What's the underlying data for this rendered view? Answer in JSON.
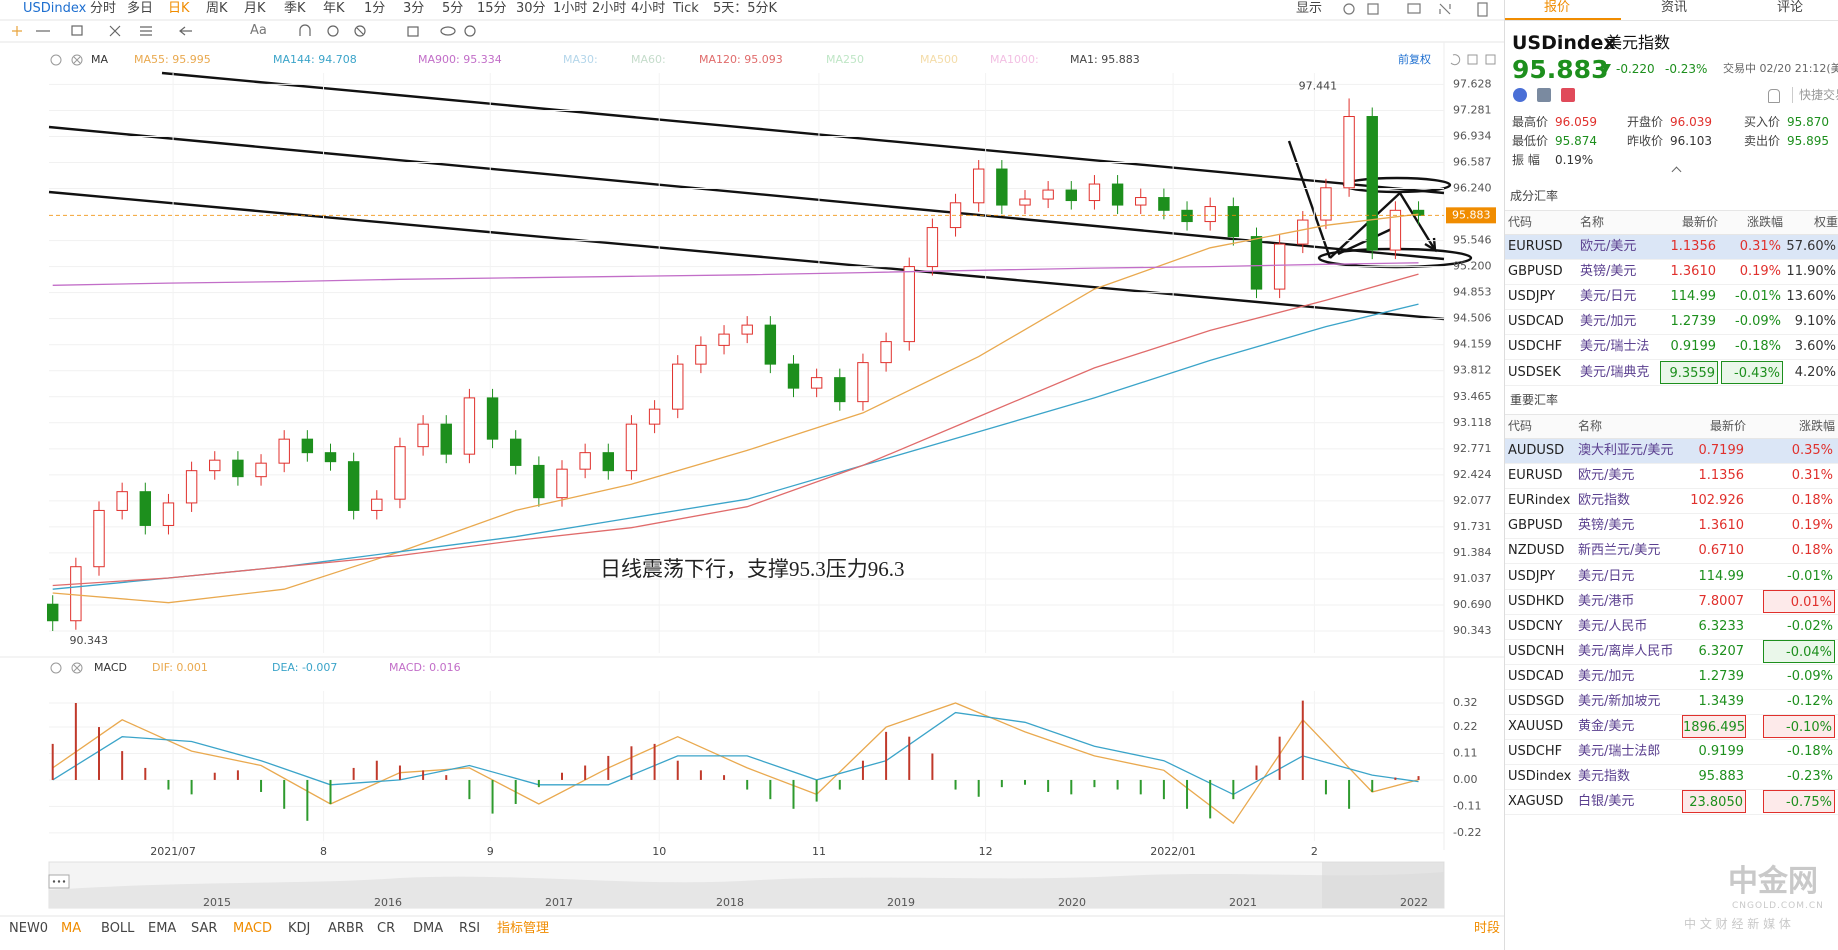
{
  "toolbar": {
    "symbol": "USDindex",
    "periods": [
      "分时",
      "多日",
      "日K",
      "周K",
      "月K",
      "季K",
      "年K",
      "1分",
      "3分",
      "5分",
      "15分",
      "30分",
      "1小时",
      "2小时",
      "4小时",
      "Tick",
      "5天：5分K"
    ],
    "display": "显示",
    "font_tool": "Aa"
  },
  "chart_data": [
    {
      "type": "candlestick",
      "indicator": "MA",
      "adjust": "前复权",
      "annotation": "日线震荡下行，支撑95.3压力96.3",
      "up_color": "#e0302c",
      "down_color": "#1d8f1d",
      "last_color": "#f08c00",
      "open": [
        90.7,
        90.48,
        91.2,
        91.95,
        92.2,
        91.75,
        92.05,
        92.48,
        92.62,
        92.4,
        92.58,
        92.9,
        92.72,
        92.6,
        91.95,
        92.1,
        92.8,
        93.1,
        92.7,
        93.45,
        92.9,
        92.55,
        92.12,
        92.5,
        92.72,
        92.48,
        93.1,
        93.3,
        93.9,
        94.15,
        94.3,
        94.42,
        93.9,
        93.58,
        93.72,
        93.4,
        93.92,
        94.2,
        95.2,
        95.72,
        96.05,
        96.5,
        96.02,
        96.1,
        96.22,
        96.08,
        96.3,
        96.02,
        96.12,
        95.95,
        95.8,
        96.0,
        95.6,
        94.9,
        95.5,
        95.82,
        96.25,
        97.2,
        95.42,
        95.95
      ],
      "high": [
        90.82,
        91.32,
        92.07,
        92.32,
        92.32,
        92.17,
        92.6,
        92.74,
        92.74,
        92.7,
        93.02,
        93.02,
        92.84,
        92.72,
        92.22,
        92.92,
        93.22,
        93.22,
        93.57,
        93.57,
        93.02,
        92.67,
        92.62,
        92.84,
        92.84,
        93.22,
        93.42,
        94.02,
        94.27,
        94.42,
        94.54,
        94.54,
        94.02,
        93.84,
        93.84,
        94.04,
        94.32,
        95.32,
        95.84,
        96.17,
        96.62,
        96.62,
        96.22,
        96.34,
        96.34,
        96.42,
        96.42,
        96.24,
        96.24,
        96.07,
        96.12,
        96.12,
        95.72,
        95.62,
        95.94,
        96.37,
        97.441,
        97.32,
        96.07,
        96.07
      ],
      "low": [
        90.343,
        90.36,
        91.08,
        91.83,
        91.63,
        91.63,
        91.93,
        92.36,
        92.28,
        92.28,
        92.46,
        92.6,
        92.48,
        91.83,
        91.83,
        91.98,
        92.68,
        92.58,
        92.58,
        92.78,
        92.43,
        92.0,
        92.0,
        92.38,
        92.36,
        92.36,
        92.98,
        93.18,
        93.78,
        94.03,
        94.18,
        93.78,
        93.46,
        93.46,
        93.28,
        93.28,
        93.8,
        94.08,
        95.08,
        95.6,
        95.93,
        95.9,
        95.9,
        95.98,
        95.96,
        95.96,
        95.9,
        95.9,
        95.83,
        95.68,
        95.68,
        95.48,
        94.78,
        94.78,
        95.38,
        95.7,
        96.13,
        95.3,
        95.3,
        95.76
      ],
      "close": [
        90.48,
        91.2,
        91.95,
        92.2,
        91.75,
        92.05,
        92.48,
        92.62,
        92.4,
        92.58,
        92.9,
        92.72,
        92.6,
        91.95,
        92.1,
        92.8,
        93.1,
        92.7,
        93.45,
        92.9,
        92.55,
        92.12,
        92.5,
        92.72,
        92.48,
        93.1,
        93.3,
        93.9,
        94.15,
        94.3,
        94.42,
        93.9,
        93.58,
        93.72,
        93.4,
        93.92,
        94.2,
        95.2,
        95.72,
        96.05,
        96.5,
        96.02,
        96.1,
        96.22,
        96.08,
        96.3,
        96.02,
        96.12,
        95.95,
        95.8,
        96.0,
        95.6,
        94.9,
        95.5,
        95.82,
        96.25,
        97.2,
        95.42,
        95.95,
        95.883
      ],
      "series": [
        {
          "name": "MA55: 95.995",
          "color": "#e9a94f",
          "x": [
            0,
            5,
            10,
            15,
            20,
            25,
            30,
            35,
            40,
            45,
            50,
            55,
            59
          ],
          "values": [
            90.85,
            90.72,
            90.9,
            91.4,
            91.95,
            92.3,
            92.75,
            93.25,
            94.0,
            94.9,
            95.45,
            95.75,
            95.9
          ]
        },
        {
          "name": "MA144: 94.708",
          "color": "#3ba4c9",
          "x": [
            0,
            5,
            10,
            15,
            20,
            25,
            30,
            35,
            40,
            45,
            50,
            55,
            59
          ],
          "values": [
            90.9,
            91.05,
            91.2,
            91.4,
            91.6,
            91.85,
            92.1,
            92.55,
            93.0,
            93.45,
            93.95,
            94.4,
            94.7
          ]
        },
        {
          "name": "MA900: 95.334",
          "color": "#c26ec8",
          "x": [
            0,
            5,
            10,
            15,
            20,
            25,
            30,
            35,
            40,
            45,
            50,
            55,
            59
          ],
          "values": [
            94.95,
            94.98,
            95.0,
            95.03,
            95.05,
            95.07,
            95.09,
            95.12,
            95.15,
            95.18,
            95.2,
            95.23,
            95.25
          ]
        },
        {
          "name": "MA30:",
          "color": "#b4d6ea"
        },
        {
          "name": "MA60:",
          "color": "#c5dccb"
        },
        {
          "name": "MA120: 95.093",
          "color": "#e06b6b",
          "x": [
            0,
            5,
            10,
            15,
            20,
            25,
            30,
            35,
            40,
            45,
            50,
            55,
            59
          ],
          "values": [
            90.95,
            91.05,
            91.2,
            91.35,
            91.55,
            91.72,
            92.0,
            92.55,
            93.2,
            93.85,
            94.35,
            94.75,
            95.1
          ]
        },
        {
          "name": "MA250",
          "color": "#bfe6c6"
        },
        {
          "name": "MA500",
          "color": "#f4dca8"
        },
        {
          "name": "MA1000:",
          "color": "#f2bfe3"
        },
        {
          "name": "MA1: 95.883",
          "color": "#444444"
        }
      ],
      "xlim": [
        -0.16,
        60.1
      ],
      "ylim": [
        90.05,
        97.78
      ],
      "yticks": [
        97.628,
        97.281,
        96.934,
        96.587,
        {
          "value": 96.24,
          "label": "96.240"
        },
        95.546,
        {
          "value": 95.2,
          "label": "95.200"
        },
        94.853,
        94.506,
        94.159,
        93.812,
        93.465,
        93.118,
        92.771,
        92.424,
        92.077,
        91.731,
        91.384,
        91.037,
        {
          "value": 90.69,
          "label": "90.690"
        },
        90.343
      ],
      "grid": true
    },
    {
      "type": "macd",
      "indicator": "MACD",
      "up_color": "#c0392b",
      "down_color": "#2e9a2e",
      "series": [
        {
          "name": "DIF: 0.001",
          "kind": "line",
          "color": "#e9a94f",
          "x": [
            0,
            3,
            6,
            9,
            12,
            15,
            18,
            21,
            24,
            27,
            30,
            33,
            36,
            39,
            42,
            45,
            48,
            51,
            54,
            57,
            59
          ],
          "values": [
            0.05,
            0.25,
            0.12,
            0.06,
            -0.1,
            0.03,
            0.05,
            -0.1,
            0.05,
            0.18,
            0.05,
            -0.06,
            0.22,
            0.32,
            0.2,
            0.1,
            0.04,
            -0.18,
            0.25,
            -0.05,
            0.001
          ]
        },
        {
          "name": "DEA: -0.007",
          "kind": "line",
          "color": "#3ba4c9",
          "x": [
            0,
            3,
            6,
            9,
            12,
            15,
            18,
            21,
            24,
            27,
            30,
            33,
            36,
            39,
            42,
            45,
            48,
            51,
            54,
            57,
            59
          ],
          "values": [
            0.0,
            0.18,
            0.16,
            0.08,
            -0.02,
            0.0,
            0.06,
            -0.02,
            -0.02,
            0.1,
            0.1,
            0.0,
            0.08,
            0.28,
            0.24,
            0.14,
            0.08,
            -0.06,
            0.1,
            0.02,
            -0.007
          ]
        },
        {
          "name": "MACD: 0.016",
          "kind": "histogram",
          "color": "#c26ec8",
          "values": [
            0.15,
            0.32,
            0.22,
            0.12,
            0.05,
            -0.04,
            -0.06,
            0.03,
            0.04,
            -0.05,
            -0.12,
            -0.17,
            -0.1,
            0.05,
            0.08,
            0.06,
            0.04,
            0.02,
            -0.08,
            -0.14,
            -0.1,
            -0.03,
            0.03,
            0.06,
            0.1,
            0.14,
            0.15,
            0.08,
            0.04,
            0.02,
            -0.04,
            -0.08,
            -0.12,
            -0.09,
            -0.04,
            0.08,
            0.2,
            0.18,
            0.11,
            -0.04,
            -0.07,
            -0.03,
            -0.02,
            -0.05,
            -0.06,
            -0.03,
            -0.04,
            -0.06,
            -0.08,
            -0.12,
            -0.16,
            -0.08,
            0.06,
            0.18,
            0.33,
            -0.06,
            -0.12,
            -0.05,
            0.01,
            0.016
          ]
        }
      ],
      "xlim": [
        -0.16,
        60.1
      ],
      "ylim": [
        -0.254,
        0.37
      ],
      "yticks": [
        0.32,
        0.22,
        0.11,
        {
          "value": 0,
          "label": "0.00"
        },
        -0.11,
        -0.22
      ],
      "xticks": [
        {
          "value": 5.2,
          "label": "2021/07"
        },
        {
          "value": 11.7,
          "label": "8"
        },
        {
          "value": 18.9,
          "label": "9"
        },
        {
          "value": 26.2,
          "label": "10"
        },
        {
          "value": 33.1,
          "label": "11"
        },
        {
          "value": 40.3,
          "label": "12"
        },
        {
          "value": 48.4,
          "label": "2022/01"
        },
        {
          "value": 54.5,
          "label": "2"
        }
      ],
      "grid": true
    }
  ],
  "navigator": {
    "years": [
      "2015",
      "2016",
      "2017",
      "2018",
      "2019",
      "2020",
      "2021",
      "2022"
    ]
  },
  "indicator_tabs": {
    "items": [
      "NEW0",
      "MA",
      "BOLL",
      "EMA",
      "SAR",
      "MACD",
      "KDJ",
      "ARBR",
      "CR",
      "DMA",
      "RSI",
      "指标管理"
    ],
    "session": "时段"
  },
  "quote_tabs": [
    "报价",
    "资讯",
    "评论"
  ],
  "quote": {
    "symbol": "USDindex",
    "name": "美元指数",
    "price": "95.883",
    "change": "-0.220",
    "change_pct": "-0.23%",
    "status": "交易中 02/20 21:12(美东",
    "quick_trade": "快捷交易",
    "stats": [
      {
        "label": "最高价",
        "value": "96.059"
      },
      {
        "label": "开盘价",
        "value": "96.039"
      },
      {
        "label": "买入价",
        "value": "95.870"
      },
      {
        "label": "最低价",
        "value": "95.874"
      },
      {
        "label": "昨收价",
        "value": "96.103"
      },
      {
        "label": "卖出价",
        "value": "95.895"
      },
      {
        "label": "振 幅",
        "value": "0.19%"
      }
    ]
  },
  "components": {
    "title": "成分汇率",
    "header": [
      "代码",
      "名称",
      "最新价",
      "涨跌幅",
      "权重"
    ],
    "rows": [
      [
        "EURUSD",
        "欧元/美元",
        "1.1356",
        "0.31%",
        "57.60%"
      ],
      [
        "GBPUSD",
        "英镑/美元",
        "1.3610",
        "0.19%",
        "11.90%"
      ],
      [
        "USDJPY",
        "美元/日元",
        "114.99",
        "-0.01%",
        "13.60%"
      ],
      [
        "USDCAD",
        "美元/加元",
        "1.2739",
        "-0.09%",
        "9.10%"
      ],
      [
        "USDCHF",
        "美元/瑞士法",
        "0.9199",
        "-0.18%",
        "3.60%"
      ],
      [
        "USDSEK",
        "美元/瑞典克",
        "9.3559",
        "-0.43%",
        "4.20%"
      ]
    ]
  },
  "major": {
    "title": "重要汇率",
    "header": [
      "代码",
      "名称",
      "最新价",
      "涨跌幅"
    ],
    "rows": [
      [
        "AUDUSD",
        "澳大利亚元/美元",
        "0.7199",
        "0.35%"
      ],
      [
        "EURUSD",
        "欧元/美元",
        "1.1356",
        "0.31%"
      ],
      [
        "EURindex",
        "欧元指数",
        "102.926",
        "0.18%"
      ],
      [
        "GBPUSD",
        "英镑/美元",
        "1.3610",
        "0.19%"
      ],
      [
        "NZDUSD",
        "新西兰元/美元",
        "0.6710",
        "0.18%"
      ],
      [
        "USDJPY",
        "美元/日元",
        "114.99",
        "-0.01%"
      ],
      [
        "USDHKD",
        "美元/港币",
        "7.8007",
        "0.01%"
      ],
      [
        "USDCNY",
        "美元/人民币",
        "6.3233",
        "-0.02%"
      ],
      [
        "USDCNH",
        "美元/离岸人民币",
        "6.3207",
        "-0.04%"
      ],
      [
        "USDCAD",
        "美元/加元",
        "1.2739",
        "-0.09%"
      ],
      [
        "USDSGD",
        "美元/新加坡元",
        "1.3439",
        "-0.12%"
      ],
      [
        "XAUUSD",
        "黄金/美元",
        "1896.4950",
        "-0.10%"
      ],
      [
        "USDCHF",
        "美元/瑞士法郎",
        "0.9199",
        "-0.18%"
      ],
      [
        "USDindex",
        "美元指数",
        "95.883",
        "-0.23%"
      ],
      [
        "XAGUSD",
        "白银/美元",
        "23.8050",
        "-0.75%"
      ]
    ]
  },
  "watermark": {
    "logo": "中金网",
    "site": "CNGOLD.COM.CN",
    "slogan": "中 文 财 经 新 媒 体"
  }
}
